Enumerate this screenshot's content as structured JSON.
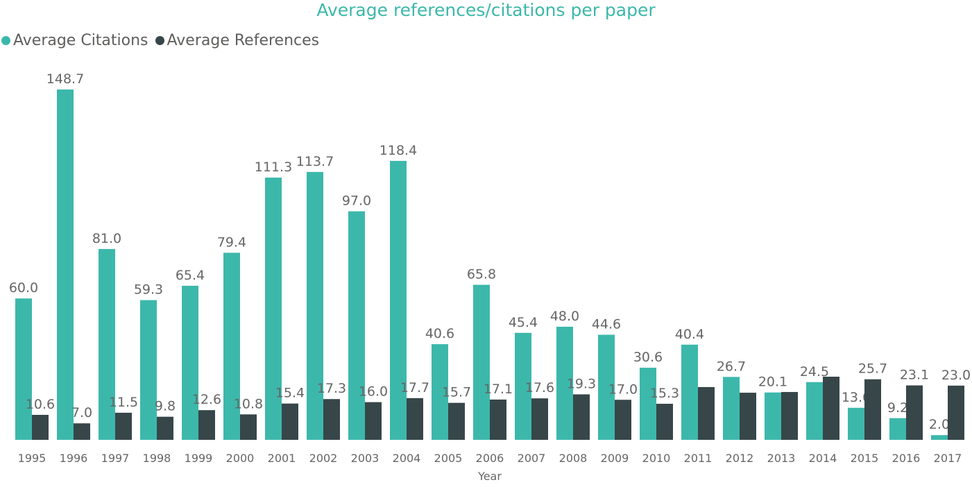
{
  "chart_data": {
    "type": "bar",
    "title": "Average references/citations per paper",
    "xlabel": "Year",
    "ylabel": "",
    "ylim": [
      0,
      150
    ],
    "grid": false,
    "legend_position": "top-left",
    "categories": [
      "1995",
      "1996",
      "1997",
      "1998",
      "1999",
      "2000",
      "2001",
      "2002",
      "2003",
      "2004",
      "2005",
      "2006",
      "2007",
      "2008",
      "2009",
      "2010",
      "2011",
      "2012",
      "2013",
      "2014",
      "2015",
      "2016",
      "2017"
    ],
    "series": [
      {
        "name": "Average Citations",
        "color": "#3cb8ab",
        "values": [
          60.0,
          148.7,
          81.0,
          59.3,
          65.4,
          79.4,
          111.3,
          113.7,
          97.0,
          118.4,
          40.6,
          65.8,
          45.4,
          48.0,
          44.6,
          30.6,
          40.4,
          26.7,
          20.1,
          24.5,
          13.6,
          9.2,
          2.0
        ],
        "labels": [
          "60.0",
          "148.7",
          "81.0",
          "59.3",
          "65.4",
          "79.4",
          "111.3",
          "113.7",
          "97.0",
          "118.4",
          "40.6",
          "65.8",
          "45.4",
          "48.0",
          "44.6",
          "30.6",
          "40.4",
          "26.7",
          "20.1",
          "24.5",
          "13.6",
          "9.2",
          "2.0"
        ]
      },
      {
        "name": "Average References",
        "color": "#374649",
        "values": [
          10.6,
          7.0,
          11.5,
          9.8,
          12.6,
          10.8,
          15.4,
          17.3,
          16.0,
          17.7,
          15.7,
          17.1,
          17.6,
          19.3,
          17.0,
          15.3,
          22.4,
          20.0,
          20.3,
          26.8,
          25.7,
          23.1,
          23.0
        ],
        "labels": [
          "10.6",
          "7.0",
          "11.5",
          "9.8",
          "12.6",
          "10.8",
          "15.4",
          "17.3",
          "16.0",
          "17.7",
          "15.7",
          "17.1",
          "17.6",
          "19.3",
          "17.0",
          "15.3",
          null,
          null,
          null,
          null,
          "25.7",
          "23.1",
          "23.0"
        ]
      }
    ]
  }
}
